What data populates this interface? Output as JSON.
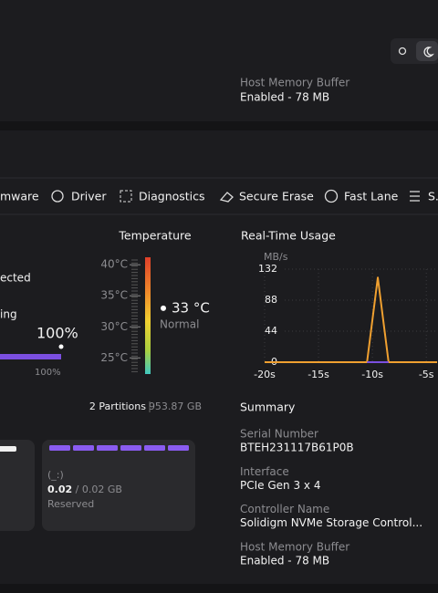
{
  "header": {
    "host_memory_label": "Host Memory Buffer",
    "host_memory_value": "Enabled - 78 MB"
  },
  "tabs": [
    "mware",
    "Driver",
    "Diagnostics",
    "Secure Erase",
    "Fast Lane",
    "S."
  ],
  "status": {
    "connection": "ected",
    "mode": "ing",
    "progress": {
      "value": 100,
      "value_label": "100%",
      "max_label": "100%"
    }
  },
  "temperature": {
    "title": "Temperature",
    "ylim": [
      22.4,
      41.2
    ],
    "yticks": [
      {
        "value": 40,
        "label": "40°C"
      },
      {
        "value": 35,
        "label": "35°C"
      },
      {
        "value": 30,
        "label": "30°C"
      },
      {
        "value": 25,
        "label": "25°C"
      }
    ],
    "value": 33,
    "value_label": "33 °C",
    "status": "Normal"
  },
  "usage_chart": {
    "type": "line",
    "title": "Real-Time Usage",
    "y_label": "MB/s",
    "x": [
      -20,
      -10.5,
      -9.5,
      -8.5,
      -4
    ],
    "series": [
      {
        "color": "#f0a030",
        "values": [
          0,
          0,
          120,
          0,
          0
        ]
      },
      {
        "color": "#7b4fe0",
        "values": [
          null,
          0,
          0,
          0,
          null
        ]
      }
    ],
    "xlim": [
      -20,
      -4
    ],
    "ylim": [
      0,
      132
    ],
    "yticks": [
      132,
      88,
      44,
      0
    ],
    "xticks": [
      {
        "value": -20,
        "label": "-20s"
      },
      {
        "value": -15,
        "label": "-15s"
      },
      {
        "value": -10,
        "label": "-10s"
      },
      {
        "value": -5,
        "label": "-5s"
      }
    ]
  },
  "partitions": {
    "count_label": "2 Partitions",
    "size": "953.87 GB",
    "cards": [
      {
        "label": "(_:)",
        "used": "0.02",
        "total": "/ 0.02 GB",
        "type": "Reserved"
      }
    ]
  },
  "summary": {
    "title": "Summary",
    "items": [
      {
        "label": "Serial Number",
        "value": "BTEH231117B61P0B"
      },
      {
        "label": "Interface",
        "value": "PCIe Gen 3 x 4"
      },
      {
        "label": "Controller Name",
        "value": "Solidigm NVMe Storage Control..."
      },
      {
        "label": "Host Memory Buffer",
        "value": "Enabled - 78 MB"
      }
    ]
  }
}
